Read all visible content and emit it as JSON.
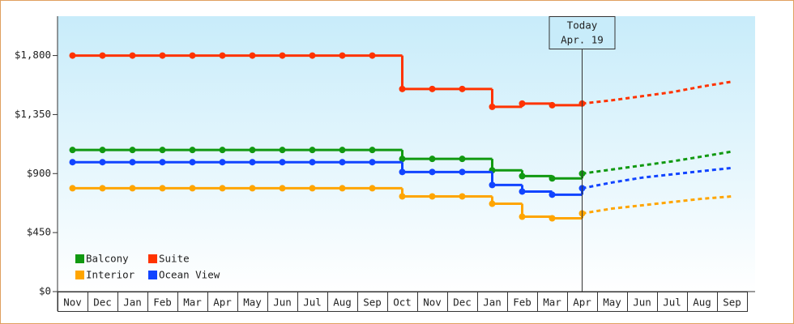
{
  "chart_data": {
    "type": "step-line",
    "categories": [
      "Nov",
      "Dec",
      "Jan",
      "Feb",
      "Mar",
      "Apr",
      "May",
      "Jun",
      "Jul",
      "Aug",
      "Sep",
      "Oct",
      "Nov",
      "Dec",
      "Jan",
      "Feb",
      "Mar",
      "Apr",
      "May",
      "Jun",
      "Jul",
      "Aug",
      "Sep"
    ],
    "ylim": [
      0,
      2100
    ],
    "yticks": [
      {
        "value": 0,
        "label": "$0"
      },
      {
        "value": 450,
        "label": "$450"
      },
      {
        "value": 900,
        "label": "$900"
      },
      {
        "value": 1350,
        "label": "$1,350"
      },
      {
        "value": 1800,
        "label": "$1,800"
      }
    ],
    "today_label": "Today",
    "today_date": "Apr. 19",
    "series": [
      {
        "name": "Balcony",
        "color": "#119911",
        "values": [
          1080,
          1080,
          1080,
          1080,
          1080,
          1080,
          1080,
          1080,
          1080,
          1080,
          1080,
          1012,
          1012,
          1012,
          925,
          881,
          863,
          900,
          null,
          null,
          null,
          null,
          null
        ],
        "forecast": [
          null,
          null,
          null,
          null,
          null,
          null,
          null,
          null,
          null,
          null,
          null,
          null,
          null,
          null,
          null,
          null,
          null,
          900,
          931,
          962,
          993,
          1030,
          1068
        ]
      },
      {
        "name": "Suite",
        "color": "#ff3300",
        "values": [
          1800,
          1800,
          1800,
          1800,
          1800,
          1800,
          1800,
          1800,
          1800,
          1800,
          1800,
          1545,
          1545,
          1545,
          1409,
          1434,
          1421,
          1434,
          null,
          null,
          null,
          null,
          null
        ],
        "forecast": [
          null,
          null,
          null,
          null,
          null,
          null,
          null,
          null,
          null,
          null,
          null,
          null,
          null,
          null,
          null,
          null,
          null,
          1434,
          1459,
          1490,
          1521,
          1564,
          1601
        ]
      },
      {
        "name": "Interior",
        "color": "#ffa500",
        "values": [
          788,
          788,
          788,
          788,
          788,
          788,
          788,
          788,
          788,
          788,
          788,
          726,
          726,
          726,
          670,
          571,
          559,
          596,
          null,
          null,
          null,
          null,
          null
        ],
        "forecast": [
          null,
          null,
          null,
          null,
          null,
          null,
          null,
          null,
          null,
          null,
          null,
          null,
          null,
          null,
          null,
          null,
          null,
          596,
          633,
          658,
          683,
          708,
          726
        ]
      },
      {
        "name": "Ocean View",
        "color": "#1144ff",
        "values": [
          987,
          987,
          987,
          987,
          987,
          987,
          987,
          987,
          987,
          987,
          987,
          912,
          912,
          912,
          813,
          763,
          739,
          788,
          null,
          null,
          null,
          null,
          null
        ],
        "forecast": [
          null,
          null,
          null,
          null,
          null,
          null,
          null,
          null,
          null,
          null,
          null,
          null,
          null,
          null,
          null,
          null,
          null,
          788,
          832,
          869,
          894,
          919,
          943
        ]
      }
    ]
  }
}
